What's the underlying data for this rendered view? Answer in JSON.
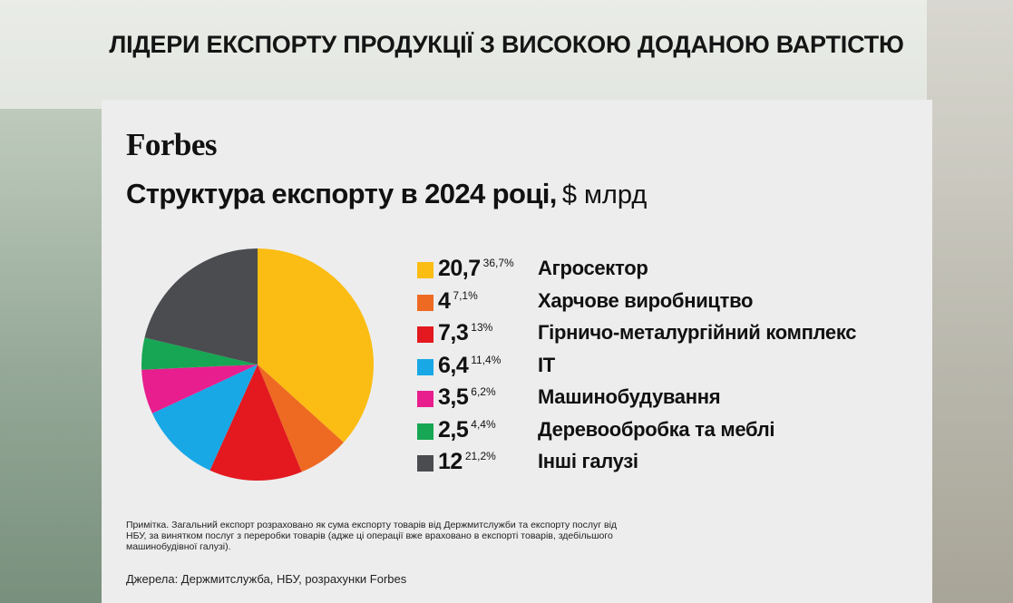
{
  "slide_title": "ЛІДЕРИ ЕКСПОРТУ ПРОДУКЦІЇ З ВИСОКОЮ ДОДАНОЮ ВАРТІСТЮ",
  "brand": "Forbes",
  "chart_title_bold": "Структура експорту в 2024 році,",
  "chart_title_unit": "$ млрд",
  "note": "Примітка. Загальний експорт розраховано як сума експорту товарів від Держмитслужби та експорту послуг від НБУ, за винятком послуг з переробки товарів (адже ці операції вже враховано в експорті товарів, здебільшого машинобудівної галузі).",
  "source": "Джерела: Держмитслужба, НБУ, розрахунки Forbes",
  "chart_data": {
    "type": "pie",
    "title": "Структура експорту в 2024 році, $ млрд",
    "legend_position": "right",
    "slices": [
      {
        "label": "Агросектор",
        "value": 20.7,
        "value_text": "20,7",
        "percent_text": "36,7%",
        "percent": 36.7,
        "color": "#fbbd13"
      },
      {
        "label": "Харчове виробництво",
        "value": 4,
        "value_text": "4",
        "percent_text": "7,1%",
        "percent": 7.1,
        "color": "#ee6a22"
      },
      {
        "label": "Гірничо-металургійний комплекс",
        "value": 7.3,
        "value_text": "7,3",
        "percent_text": "13%",
        "percent": 13,
        "color": "#e3191f"
      },
      {
        "label": "IT",
        "value": 6.4,
        "value_text": "6,4",
        "percent_text": "11,4%",
        "percent": 11.4,
        "color": "#18a8e6"
      },
      {
        "label": "Машинобудування",
        "value": 3.5,
        "value_text": "3,5",
        "percent_text": "6,2%",
        "percent": 6.2,
        "color": "#e81e8e"
      },
      {
        "label": "Деревообробка та меблі",
        "value": 2.5,
        "value_text": "2,5",
        "percent_text": "4,4%",
        "percent": 4.4,
        "color": "#17a653"
      },
      {
        "label": "Інші галузі",
        "value": 12,
        "value_text": "12",
        "percent_text": "21,2%",
        "percent": 21.2,
        "color": "#4a4c50"
      }
    ]
  }
}
